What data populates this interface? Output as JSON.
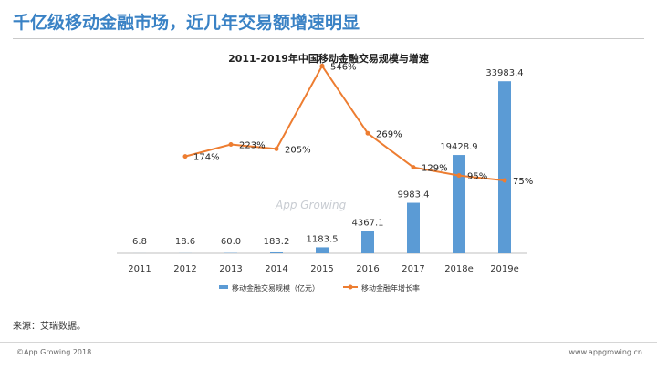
{
  "header": {
    "title": "千亿级移动金融市场，近几年交易额增速明显"
  },
  "watermark": "App Growing",
  "source_note": "来源：艾瑞数据。",
  "footer": {
    "left": "©App Growing 2018",
    "right": "www.appgrowing.cn"
  },
  "colors": {
    "accent": "#3a82c5",
    "bar": "#5b9bd5",
    "line": "#ed7d31"
  },
  "chart_data": {
    "type": "bar",
    "title": "2011-2019年中国移动金融交易规模与增速",
    "categories": [
      "2011",
      "2012",
      "2013",
      "2014",
      "2015",
      "2016",
      "2017",
      "2018e",
      "2019e"
    ],
    "series": [
      {
        "name": "移动金融交易规模（亿元）",
        "type": "bar",
        "values": [
          6.8,
          18.6,
          60.0,
          183.2,
          1183.5,
          4367.1,
          9983.4,
          19428.9,
          33983.4
        ],
        "labels": [
          "6.8",
          "18.6",
          "60.0",
          "183.2",
          "1183.5",
          "4367.1",
          "9983.4",
          "19428.9",
          "33983.4"
        ]
      },
      {
        "name": "移动金融年增长率",
        "type": "line",
        "values": [
          null,
          174,
          223,
          205,
          546,
          269,
          129,
          95,
          75
        ],
        "labels": [
          "",
          "174%",
          "223%",
          "205%",
          "546%",
          "269%",
          "129%",
          "95%",
          "75%"
        ]
      }
    ],
    "ylim": [
      0,
      36000
    ],
    "y2lim": [
      0,
      600
    ],
    "grid": false,
    "legend": "bottom"
  }
}
